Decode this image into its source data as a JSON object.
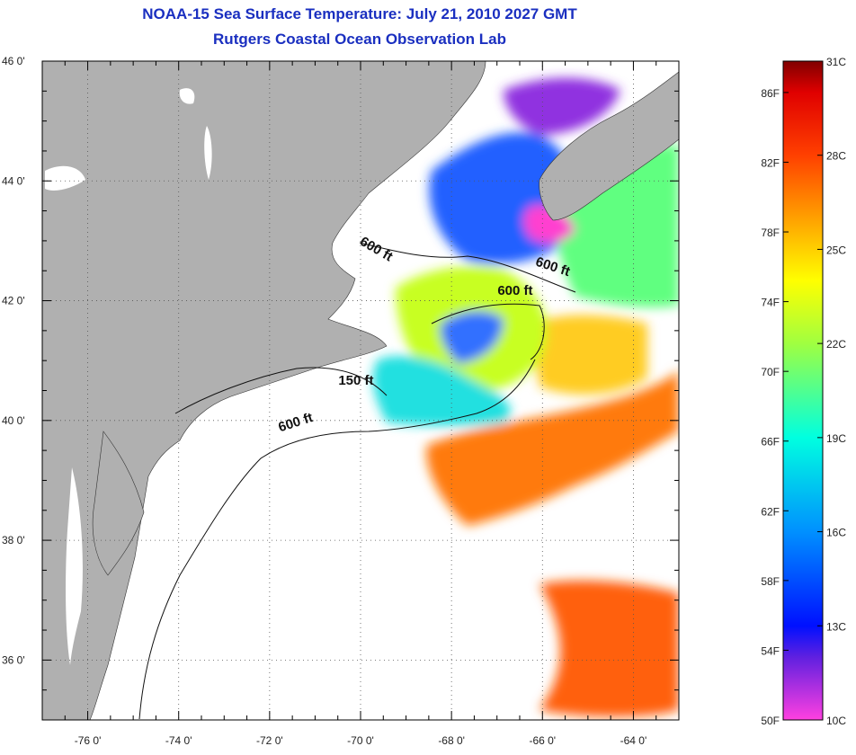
{
  "title": {
    "line1": "NOAA-15 Sea Surface Temperature:  July 21, 2010 2027 GMT",
    "line2": "Rutgers Coastal Ocean Observation Lab"
  },
  "map": {
    "lon_range": [
      -77,
      -63
    ],
    "lat_range": [
      35,
      46
    ],
    "lon_ticks": [
      {
        "value": -76,
        "label": "-76 0'"
      },
      {
        "value": -74,
        "label": "-74 0'"
      },
      {
        "value": -72,
        "label": "-72 0'"
      },
      {
        "value": -70,
        "label": "-70 0'"
      },
      {
        "value": -68,
        "label": "-68 0'"
      },
      {
        "value": -66,
        "label": "-66 0'"
      },
      {
        "value": -64,
        "label": "-64 0'"
      }
    ],
    "lat_ticks": [
      {
        "value": 46,
        "label": "46 0'"
      },
      {
        "value": 44,
        "label": "44 0'"
      },
      {
        "value": 42,
        "label": "42 0'"
      },
      {
        "value": 40,
        "label": "40 0'"
      },
      {
        "value": 38,
        "label": "38 0'"
      },
      {
        "value": 36,
        "label": "36 0'"
      }
    ],
    "land_color": "#b0b0b0",
    "contour_labels": [
      {
        "text": "600 ft",
        "lon": -69.7,
        "lat": 42.8,
        "angle": 30
      },
      {
        "text": "600 ft",
        "lon": -65.8,
        "lat": 42.5,
        "angle": 18
      },
      {
        "text": "600 ft",
        "lon": -66.6,
        "lat": 42.1,
        "angle": 0
      },
      {
        "text": "150 ft",
        "lon": -70.1,
        "lat": 40.6,
        "angle": 0
      },
      {
        "text": "600 ft",
        "lon": -71.4,
        "lat": 39.9,
        "angle": -18
      }
    ]
  },
  "colorbar": {
    "temp_c_range": [
      10,
      31
    ],
    "celsius_labels": [
      {
        "value": 31,
        "label": "31C"
      },
      {
        "value": 28,
        "label": "28C"
      },
      {
        "value": 25,
        "label": "25C"
      },
      {
        "value": 22,
        "label": "22C"
      },
      {
        "value": 19,
        "label": "19C"
      },
      {
        "value": 16,
        "label": "16C"
      },
      {
        "value": 13,
        "label": "13C"
      },
      {
        "value": 10,
        "label": "10C"
      }
    ],
    "fahrenheit_labels": [
      {
        "value": 86,
        "label": "86F"
      },
      {
        "value": 82,
        "label": "82F"
      },
      {
        "value": 78,
        "label": "78F"
      },
      {
        "value": 74,
        "label": "74F"
      },
      {
        "value": 70,
        "label": "70F"
      },
      {
        "value": 66,
        "label": "66F"
      },
      {
        "value": 62,
        "label": "62F"
      },
      {
        "value": 58,
        "label": "58F"
      },
      {
        "value": 54,
        "label": "54F"
      },
      {
        "value": 50,
        "label": "50F"
      }
    ],
    "color_stops": [
      {
        "temp_c": 10,
        "color": "#ff40e0"
      },
      {
        "temp_c": 12,
        "color": "#6020e0"
      },
      {
        "temp_c": 13,
        "color": "#0010ff"
      },
      {
        "temp_c": 16,
        "color": "#0090ff"
      },
      {
        "temp_c": 19,
        "color": "#00ffe0"
      },
      {
        "temp_c": 22,
        "color": "#a0ff40"
      },
      {
        "temp_c": 24,
        "color": "#ffff00"
      },
      {
        "temp_c": 26,
        "color": "#ffa000"
      },
      {
        "temp_c": 28,
        "color": "#ff4000"
      },
      {
        "temp_c": 30,
        "color": "#e00000"
      },
      {
        "temp_c": 31,
        "color": "#800000"
      }
    ]
  }
}
